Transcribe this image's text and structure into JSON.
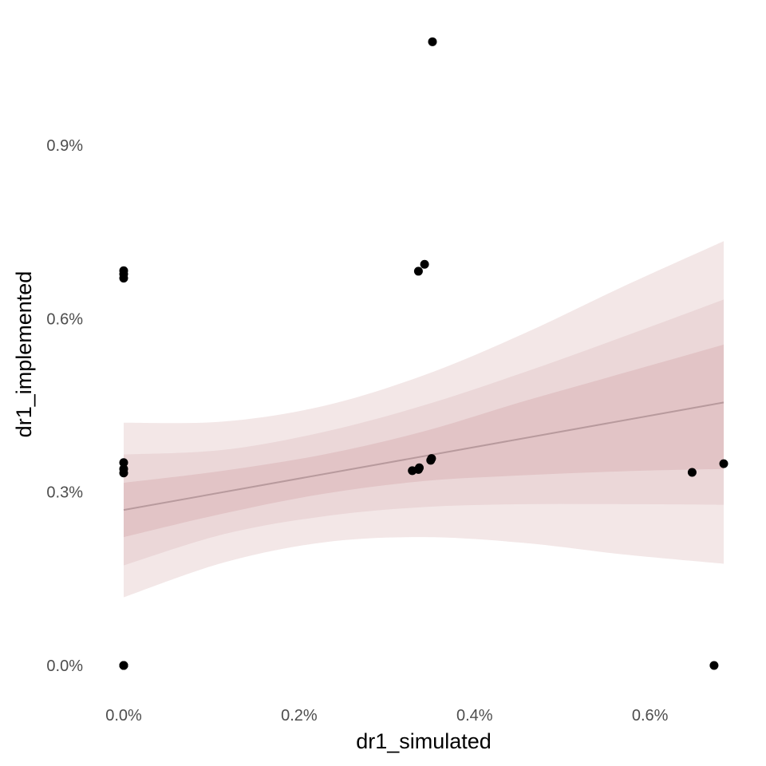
{
  "chart_data": {
    "type": "scatter",
    "title": "",
    "xlabel": "dr1_simulated",
    "ylabel": "dr1_implemented",
    "xlim": [
      -3.14e-05,
      0.007
    ],
    "ylim": [
      -0.0005,
      0.01095
    ],
    "x_ticks": [
      0.0,
      0.002,
      0.004,
      0.006
    ],
    "x_tick_labels": [
      "0.0%",
      "0.2%",
      "0.4%",
      "0.6%"
    ],
    "y_ticks": [
      0.0,
      0.003,
      0.006,
      0.009
    ],
    "y_tick_labels": [
      "0.0%",
      "0.3%",
      "0.6%",
      "0.9%"
    ],
    "grid": false,
    "points": [
      {
        "x": 0.0,
        "y": 0.0
      },
      {
        "x": 0.0,
        "y": 0.0
      },
      {
        "x": 0.0,
        "y": 0.0
      },
      {
        "x": 0.0,
        "y": 0.00333
      },
      {
        "x": 0.0,
        "y": 0.0034
      },
      {
        "x": 0.0,
        "y": 0.00351
      },
      {
        "x": 0.0,
        "y": 0.0067
      },
      {
        "x": 0.0,
        "y": 0.00677
      },
      {
        "x": 0.0,
        "y": 0.00683
      },
      {
        "x": 0.00329,
        "y": 0.00337
      },
      {
        "x": 0.00336,
        "y": 0.00339
      },
      {
        "x": 0.00337,
        "y": 0.00342
      },
      {
        "x": 0.00336,
        "y": 0.00682
      },
      {
        "x": 0.00343,
        "y": 0.00694
      },
      {
        "x": 0.0035,
        "y": 0.00355
      },
      {
        "x": 0.00351,
        "y": 0.00358
      },
      {
        "x": 0.00352,
        "y": 0.01079
      },
      {
        "x": 0.00648,
        "y": 0.00334
      },
      {
        "x": 0.00673,
        "y": 0.0
      },
      {
        "x": 0.00684,
        "y": 0.00349
      }
    ],
    "fit": {
      "x": [
        0.0,
        0.00114,
        0.00228,
        0.00342,
        0.00456,
        0.0057,
        0.00684
      ],
      "y": [
        0.00269,
        0.003,
        0.00331,
        0.00362,
        0.00393,
        0.00424,
        0.00455
      ],
      "bands": [
        {
          "lower": [
            0.00118,
            0.00178,
            0.00213,
            0.00222,
            0.00212,
            0.00192,
            0.00176
          ],
          "upper": [
            0.0042,
            0.00422,
            0.00449,
            0.00502,
            0.00574,
            0.00656,
            0.00734
          ]
        },
        {
          "lower": [
            0.00173,
            0.00227,
            0.00258,
            0.00274,
            0.00279,
            0.00279,
            0.00278
          ],
          "upper": [
            0.00365,
            0.00373,
            0.00404,
            0.0045,
            0.00507,
            0.00569,
            0.00633
          ]
        },
        {
          "lower": [
            0.00222,
            0.00263,
            0.00297,
            0.00319,
            0.00329,
            0.00336,
            0.0034
          ],
          "upper": [
            0.00316,
            0.00337,
            0.00365,
            0.00405,
            0.00457,
            0.00506,
            0.00555
          ]
        }
      ]
    },
    "colors": {
      "points": "#000000",
      "fit_line": "#b89a9d",
      "band_outer": "#f3e7e7",
      "band_middle": "#ebd7d8",
      "band_inner": "#e2c4c6",
      "tick_text": "#4d4d4d",
      "axis_title": "#000000"
    }
  }
}
